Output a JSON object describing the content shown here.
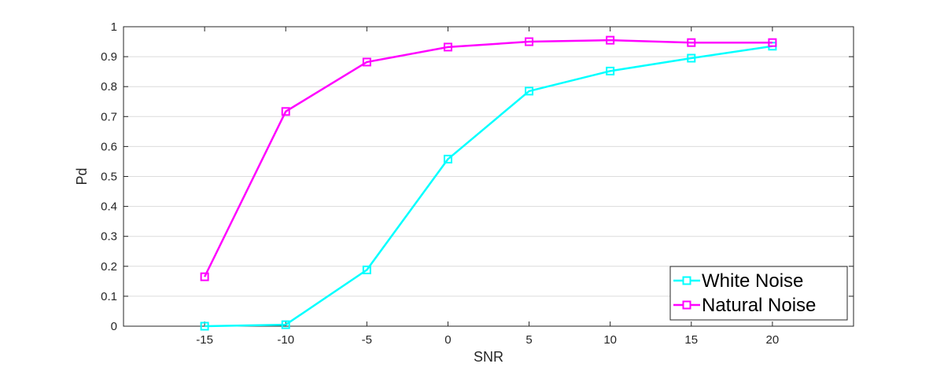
{
  "chart_data": {
    "type": "line",
    "xlabel": "SNR",
    "ylabel": "Pd",
    "xlim": [
      -20,
      25
    ],
    "ylim": [
      0,
      1
    ],
    "grid": "horizontal",
    "legend_position": "bottom-right",
    "xticks": [
      "-15",
      "-10",
      "-5",
      "0",
      "5",
      "10",
      "15",
      "20"
    ],
    "yticks": [
      "0",
      "0.1",
      "0.2",
      "0.3",
      "0.4",
      "0.5",
      "0.6",
      "0.7",
      "0.8",
      "0.9",
      "1"
    ],
    "x": [
      -15,
      -10,
      -5,
      0,
      5,
      10,
      15,
      20
    ],
    "series": [
      {
        "name": "White Noise",
        "color": "#00ffff",
        "marker": "square",
        "values": [
          0.0,
          0.005,
          0.188,
          0.558,
          0.785,
          0.852,
          0.895,
          0.935
        ]
      },
      {
        "name": "Natural Noise",
        "color": "#ff00ff",
        "marker": "square",
        "values": [
          0.165,
          0.717,
          0.882,
          0.932,
          0.95,
          0.955,
          0.947,
          0.947
        ]
      }
    ]
  }
}
